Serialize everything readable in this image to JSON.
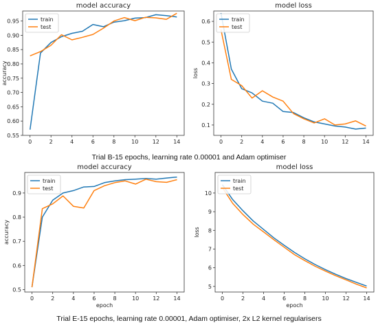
{
  "captions": [
    "Trial B-15 epochs, learning rate 0.00001 and Adam optimiser",
    "Trial E-15 epochs, learning rate 0.00001, Adam optimiser, 2x L2 kernel regularisers"
  ],
  "colors": {
    "train": "#1f77b4",
    "test": "#ff7f0e"
  },
  "chart_data": [
    {
      "type": "line",
      "title": "model accuracy",
      "xlabel": "",
      "ylabel": "accuracy",
      "x": [
        0,
        1,
        2,
        3,
        4,
        5,
        6,
        7,
        8,
        9,
        10,
        11,
        12,
        13,
        14
      ],
      "xticks": [
        0,
        2,
        4,
        6,
        8,
        10,
        12,
        14
      ],
      "yticks": [
        0.55,
        0.6,
        0.65,
        0.7,
        0.75,
        0.8,
        0.85,
        0.9,
        0.95
      ],
      "ytick_labels": [
        "0.55",
        "0.60",
        "0.65",
        "0.70",
        "0.75",
        "0.80",
        "0.85",
        "0.90",
        "0.95"
      ],
      "xlim": [
        -0.7,
        14.7
      ],
      "ylim": [
        0.55,
        0.985
      ],
      "legend": "upper left",
      "series": [
        {
          "name": "train",
          "values": [
            0.57,
            0.838,
            0.875,
            0.895,
            0.907,
            0.914,
            0.938,
            0.93,
            0.946,
            0.951,
            0.96,
            0.962,
            0.972,
            0.969,
            0.964
          ]
        },
        {
          "name": "test",
          "values": [
            0.828,
            0.843,
            0.865,
            0.902,
            0.884,
            0.893,
            0.903,
            0.925,
            0.95,
            0.962,
            0.951,
            0.963,
            0.961,
            0.956,
            0.977
          ]
        }
      ]
    },
    {
      "type": "line",
      "title": "model loss",
      "xlabel": "",
      "ylabel": "loss",
      "x": [
        0,
        1,
        2,
        3,
        4,
        5,
        6,
        7,
        8,
        9,
        10,
        11,
        12,
        13,
        14
      ],
      "xticks": [
        0,
        2,
        4,
        6,
        8,
        10,
        12,
        14
      ],
      "yticks": [
        0.1,
        0.2,
        0.3,
        0.4,
        0.5,
        0.6
      ],
      "ytick_labels": [
        "0.1",
        "0.2",
        "0.3",
        "0.4",
        "0.5",
        "0.6"
      ],
      "xlim": [
        -0.7,
        14.7
      ],
      "ylim": [
        0.05,
        0.65
      ],
      "legend": "upper left",
      "series": [
        {
          "name": "train",
          "values": [
            0.64,
            0.37,
            0.275,
            0.255,
            0.215,
            0.205,
            0.165,
            0.16,
            0.135,
            0.115,
            0.105,
            0.095,
            0.09,
            0.08,
            0.085
          ]
        },
        {
          "name": "test",
          "values": [
            0.56,
            0.32,
            0.29,
            0.23,
            0.265,
            0.235,
            0.215,
            0.155,
            0.13,
            0.11,
            0.13,
            0.1,
            0.105,
            0.12,
            0.095
          ]
        }
      ]
    },
    {
      "type": "line",
      "title": "model accuracy",
      "xlabel": "epoch",
      "ylabel": "accuracy",
      "x": [
        0,
        1,
        2,
        3,
        4,
        5,
        6,
        7,
        8,
        9,
        10,
        11,
        12,
        13,
        14
      ],
      "xticks": [
        0,
        2,
        4,
        6,
        8,
        10,
        12,
        14
      ],
      "yticks": [
        0.5,
        0.6,
        0.7,
        0.8,
        0.9
      ],
      "ytick_labels": [
        "0.5",
        "0.6",
        "0.7",
        "0.8",
        "0.9"
      ],
      "xlim": [
        -0.7,
        14.7
      ],
      "ylim": [
        0.49,
        0.985
      ],
      "legend": "upper left",
      "series": [
        {
          "name": "train",
          "values": [
            0.51,
            0.8,
            0.87,
            0.9,
            0.91,
            0.925,
            0.927,
            0.943,
            0.95,
            0.955,
            0.957,
            0.96,
            0.957,
            0.962,
            0.966
          ]
        },
        {
          "name": "test",
          "values": [
            0.51,
            0.835,
            0.855,
            0.888,
            0.845,
            0.838,
            0.91,
            0.93,
            0.943,
            0.95,
            0.937,
            0.957,
            0.947,
            0.944,
            0.955
          ]
        }
      ]
    },
    {
      "type": "line",
      "title": "model loss",
      "xlabel": "epoch",
      "ylabel": "loss",
      "x": [
        0,
        1,
        2,
        3,
        4,
        5,
        6,
        7,
        8,
        9,
        10,
        11,
        12,
        13,
        14
      ],
      "xticks": [
        0,
        2,
        4,
        6,
        8,
        10,
        12,
        14
      ],
      "yticks": [
        5,
        6,
        7,
        8,
        9,
        10
      ],
      "ytick_labels": [
        "5",
        "6",
        "7",
        "8",
        "9",
        "10"
      ],
      "xlim": [
        -0.7,
        14.7
      ],
      "ylim": [
        4.7,
        11.1
      ],
      "legend": "upper left",
      "series": [
        {
          "name": "train",
          "values": [
            10.45,
            9.65,
            9.05,
            8.5,
            8.05,
            7.6,
            7.2,
            6.82,
            6.48,
            6.17,
            5.9,
            5.65,
            5.42,
            5.22,
            5.02
          ]
        },
        {
          "name": "test",
          "values": [
            10.3,
            9.45,
            8.85,
            8.33,
            7.92,
            7.5,
            7.1,
            6.7,
            6.38,
            6.08,
            5.82,
            5.57,
            5.35,
            5.12,
            4.92
          ]
        }
      ]
    }
  ]
}
